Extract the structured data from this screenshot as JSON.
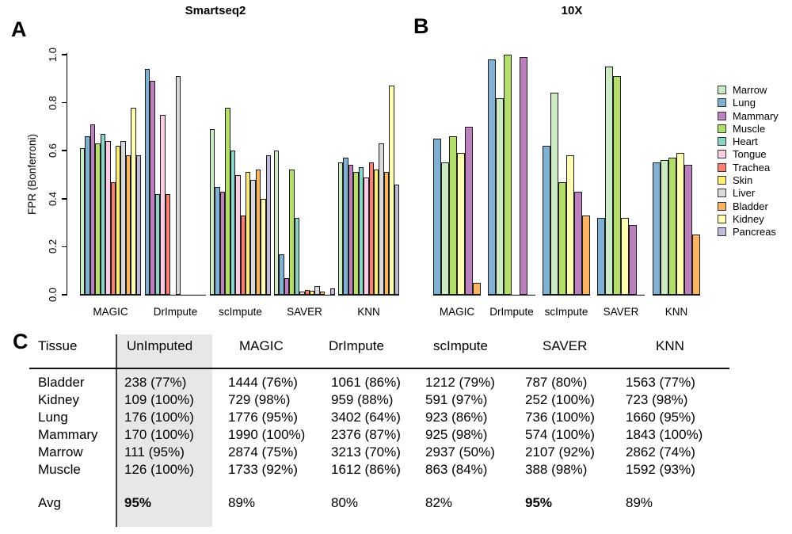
{
  "figure": {
    "panel_a_label": "A",
    "panel_b_label": "B",
    "panel_c_label": "C"
  },
  "tissue_colors": {
    "Marrow": "#CCEBC5",
    "Lung": "#80B1D3",
    "Mammary": "#BC80BD",
    "Muscle": "#B3DE69",
    "Heart": "#8DD3C7",
    "Tongue": "#FCCDE5",
    "Trachea": "#FB8072",
    "Skin": "#FFED6F",
    "Liver": "#D9D9D9",
    "Bladder": "#FDB462",
    "Kidney": "#FFFFB3",
    "Pancreas": "#BEBADA"
  },
  "legend": {
    "position": "right-outside",
    "items": [
      {
        "label": "Marrow",
        "color": "#CCEBC5"
      },
      {
        "label": "Lung",
        "color": "#80B1D3"
      },
      {
        "label": "Mammary",
        "color": "#BC80BD"
      },
      {
        "label": "Muscle",
        "color": "#B3DE69"
      },
      {
        "label": "Heart",
        "color": "#8DD3C7"
      },
      {
        "label": "Tongue",
        "color": "#FCCDE5"
      },
      {
        "label": "Trachea",
        "color": "#FB8072"
      },
      {
        "label": "Skin",
        "color": "#FFED6F"
      },
      {
        "label": "Liver",
        "color": "#D9D9D9"
      },
      {
        "label": "Bladder",
        "color": "#FDB462"
      },
      {
        "label": "Kidney",
        "color": "#FFFFB3"
      },
      {
        "label": "Pancreas",
        "color": "#BEBADA"
      }
    ]
  },
  "chart_data": [
    {
      "type": "bar",
      "panel": "A",
      "title": "Smartseq2",
      "ylabel": "FPR (Bonferroni)",
      "ylim": [
        0,
        1
      ],
      "yticks": [
        0,
        0.2,
        0.4,
        0.6,
        0.8,
        1.0
      ],
      "grid": false,
      "groups": [
        {
          "label": "MAGIC",
          "bars": [
            {
              "tissue": "Marrow",
              "value": 0.61
            },
            {
              "tissue": "Lung",
              "value": 0.66
            },
            {
              "tissue": "Mammary",
              "value": 0.71
            },
            {
              "tissue": "Muscle",
              "value": 0.63
            },
            {
              "tissue": "Heart",
              "value": 0.67
            },
            {
              "tissue": "Tongue",
              "value": 0.64
            },
            {
              "tissue": "Trachea",
              "value": 0.47
            },
            {
              "tissue": "Skin",
              "value": 0.62
            },
            {
              "tissue": "Liver",
              "value": 0.64
            },
            {
              "tissue": "Bladder",
              "value": 0.58
            },
            {
              "tissue": "Kidney",
              "value": 0.78
            },
            {
              "tissue": "Pancreas",
              "value": 0.58
            }
          ]
        },
        {
          "label": "DrImpute",
          "bars": [
            {
              "tissue": "Lung",
              "value": 0.94
            },
            {
              "tissue": "Mammary",
              "value": 0.89
            },
            {
              "tissue": "Heart",
              "value": 0.42
            },
            {
              "tissue": "Tongue",
              "value": 0.75
            },
            {
              "tissue": "Trachea",
              "value": 0.42
            },
            null,
            {
              "tissue": "Liver",
              "value": 0.91
            },
            null,
            null,
            null,
            null,
            null
          ]
        },
        {
          "label": "scImpute",
          "bars": [
            {
              "tissue": "Marrow",
              "value": 0.69
            },
            {
              "tissue": "Lung",
              "value": 0.45
            },
            {
              "tissue": "Mammary",
              "value": 0.43
            },
            {
              "tissue": "Muscle",
              "value": 0.78
            },
            {
              "tissue": "Heart",
              "value": 0.6
            },
            {
              "tissue": "Tongue",
              "value": 0.5
            },
            {
              "tissue": "Trachea",
              "value": 0.33
            },
            {
              "tissue": "Skin",
              "value": 0.51
            },
            {
              "tissue": "Liver",
              "value": 0.48
            },
            {
              "tissue": "Bladder",
              "value": 0.52
            },
            {
              "tissue": "Kidney",
              "value": 0.4
            },
            {
              "tissue": "Pancreas",
              "value": 0.58
            }
          ]
        },
        {
          "label": "SAVER",
          "bars": [
            {
              "tissue": "Marrow",
              "value": 0.6
            },
            {
              "tissue": "Lung",
              "value": 0.17
            },
            {
              "tissue": "Mammary",
              "value": 0.07
            },
            {
              "tissue": "Muscle",
              "value": 0.52
            },
            {
              "tissue": "Heart",
              "value": 0.32
            },
            {
              "tissue": "Tongue",
              "value": 0.012
            },
            {
              "tissue": "Trachea",
              "value": 0.02
            },
            {
              "tissue": "Skin",
              "value": 0.015
            },
            {
              "tissue": "Liver",
              "value": 0.035
            },
            {
              "tissue": "Bladder",
              "value": 0.012
            },
            null,
            {
              "tissue": "Pancreas",
              "value": 0.025
            }
          ]
        },
        {
          "label": "KNN",
          "bars": [
            {
              "tissue": "Marrow",
              "value": 0.55
            },
            {
              "tissue": "Lung",
              "value": 0.57
            },
            {
              "tissue": "Mammary",
              "value": 0.54
            },
            {
              "tissue": "Muscle",
              "value": 0.51
            },
            {
              "tissue": "Heart",
              "value": 0.53
            },
            {
              "tissue": "Tongue",
              "value": 0.49
            },
            {
              "tissue": "Trachea",
              "value": 0.55
            },
            {
              "tissue": "Skin",
              "value": 0.52
            },
            {
              "tissue": "Liver",
              "value": 0.63
            },
            {
              "tissue": "Bladder",
              "value": 0.51
            },
            {
              "tissue": "Kidney",
              "value": 0.87
            },
            {
              "tissue": "Pancreas",
              "value": 0.46
            }
          ]
        }
      ]
    },
    {
      "type": "bar",
      "panel": "B",
      "title": "10X",
      "ylabel": "FPR (Bonferroni)",
      "ylim": [
        0,
        1
      ],
      "yticks": [],
      "grid": false,
      "groups": [
        {
          "label": "MAGIC",
          "bars": [
            {
              "tissue": "Lung",
              "value": 0.65
            },
            {
              "tissue": "Marrow",
              "value": 0.55
            },
            {
              "tissue": "Muscle",
              "value": 0.66
            },
            {
              "tissue": "Kidney",
              "value": 0.59
            },
            {
              "tissue": "Mammary",
              "value": 0.7
            },
            {
              "tissue": "Bladder",
              "value": 0.05
            }
          ]
        },
        {
          "label": "DrImpute",
          "bars": [
            {
              "tissue": "Lung",
              "value": 0.98
            },
            {
              "tissue": "Marrow",
              "value": 0.82
            },
            {
              "tissue": "Muscle",
              "value": 1.0
            },
            null,
            {
              "tissue": "Mammary",
              "value": 0.99
            },
            null
          ]
        },
        {
          "label": "scImpute",
          "bars": [
            {
              "tissue": "Lung",
              "value": 0.62
            },
            {
              "tissue": "Marrow",
              "value": 0.84
            },
            {
              "tissue": "Muscle",
              "value": 0.47
            },
            {
              "tissue": "Kidney",
              "value": 0.58
            },
            {
              "tissue": "Mammary",
              "value": 0.43
            },
            {
              "tissue": "Bladder",
              "value": 0.33
            }
          ]
        },
        {
          "label": "SAVER",
          "bars": [
            {
              "tissue": "Lung",
              "value": 0.32
            },
            {
              "tissue": "Marrow",
              "value": 0.95
            },
            {
              "tissue": "Muscle",
              "value": 0.91
            },
            {
              "tissue": "Kidney",
              "value": 0.32
            },
            {
              "tissue": "Mammary",
              "value": 0.29
            },
            null
          ]
        },
        {
          "label": "KNN",
          "bars": [
            {
              "tissue": "Lung",
              "value": 0.55
            },
            {
              "tissue": "Marrow",
              "value": 0.56
            },
            {
              "tissue": "Muscle",
              "value": 0.57
            },
            {
              "tissue": "Kidney",
              "value": 0.59
            },
            {
              "tissue": "Mammary",
              "value": 0.54
            },
            {
              "tissue": "Bladder",
              "value": 0.25
            }
          ]
        }
      ]
    }
  ],
  "table": {
    "columns": [
      "Tissue",
      "UnImputed",
      "MAGIC",
      "DrImpute",
      "scImpute",
      "SAVER",
      "KNN"
    ],
    "highlight_column": "UnImputed",
    "rows": [
      {
        "tissue": "Bladder",
        "values": [
          "238 (77%)",
          "1444 (76%)",
          "1061 (86%)",
          "1212 (79%)",
          "787 (80%)",
          "1563 (77%)"
        ]
      },
      {
        "tissue": "Kidney",
        "values": [
          "109 (100%)",
          "729 (98%)",
          "959 (88%)",
          "591 (97%)",
          "252 (100%)",
          "723 (98%)"
        ]
      },
      {
        "tissue": "Lung",
        "values": [
          "176 (100%)",
          "1776 (95%)",
          "3402 (64%)",
          "923 (86%)",
          "736 (100%)",
          "1660 (95%)"
        ]
      },
      {
        "tissue": "Mammary",
        "values": [
          "170 (100%)",
          "1990 (100%)",
          "2376 (87%)",
          "925 (98%)",
          "574 (100%)",
          "1843 (100%)"
        ]
      },
      {
        "tissue": "Marrow",
        "values": [
          "111 (95%)",
          "2874 (75%)",
          "3213 (70%)",
          "2937 (50%)",
          "2107 (92%)",
          "2862 (74%)"
        ]
      },
      {
        "tissue": "Muscle",
        "values": [
          "126 (100%)",
          "1733 (92%)",
          "1612 (86%)",
          "863 (84%)",
          "388 (98%)",
          "1592 (93%)"
        ]
      }
    ],
    "avg_row": {
      "label": "Avg",
      "values": [
        {
          "text": "95%",
          "bold": true
        },
        {
          "text": "89%",
          "bold": false
        },
        {
          "text": "80%",
          "bold": false
        },
        {
          "text": "82%",
          "bold": false
        },
        {
          "text": "95%",
          "bold": true
        },
        {
          "text": "89%",
          "bold": false
        }
      ]
    }
  }
}
